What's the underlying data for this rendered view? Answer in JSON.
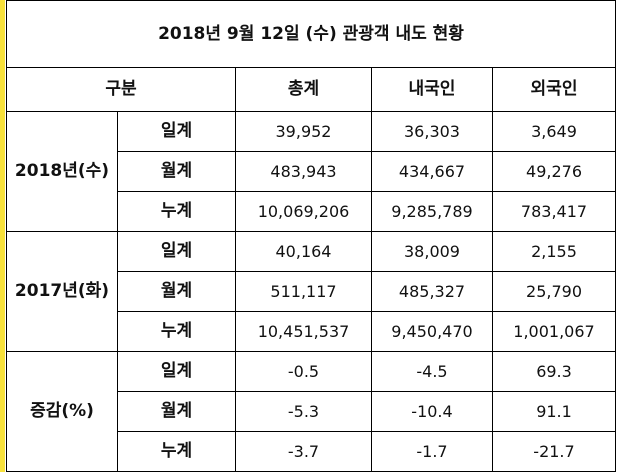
{
  "title": "2018년 9월 12일 (수) 관광객 내도 현황",
  "header": {
    "category": "구분",
    "total": "총계",
    "domestic": "내국인",
    "foreign": "외국인"
  },
  "groups": [
    {
      "label": "2018년(수)",
      "rows": [
        {
          "type": "일계",
          "total": "39,952",
          "domestic": "36,303",
          "foreign": "3,649"
        },
        {
          "type": "월계",
          "total": "483,943",
          "domestic": "434,667",
          "foreign": "49,276"
        },
        {
          "type": "누계",
          "total": "10,069,206",
          "domestic": "9,285,789",
          "foreign": "783,417"
        }
      ]
    },
    {
      "label": "2017년(화)",
      "rows": [
        {
          "type": "일계",
          "total": "40,164",
          "domestic": "38,009",
          "foreign": "2,155"
        },
        {
          "type": "월계",
          "total": "511,117",
          "domestic": "485,327",
          "foreign": "25,790"
        },
        {
          "type": "누계",
          "total": "10,451,537",
          "domestic": "9,450,470",
          "foreign": "1,001,067"
        }
      ]
    },
    {
      "label": "증감(%)",
      "rows": [
        {
          "type": "일계",
          "total": "-0.5",
          "domestic": "-4.5",
          "foreign": "69.3"
        },
        {
          "type": "월계",
          "total": "-5.3",
          "domestic": "-10.4",
          "foreign": "91.1"
        },
        {
          "type": "누계",
          "total": "-3.7",
          "domestic": "-1.7",
          "foreign": "-21.7"
        }
      ]
    }
  ]
}
